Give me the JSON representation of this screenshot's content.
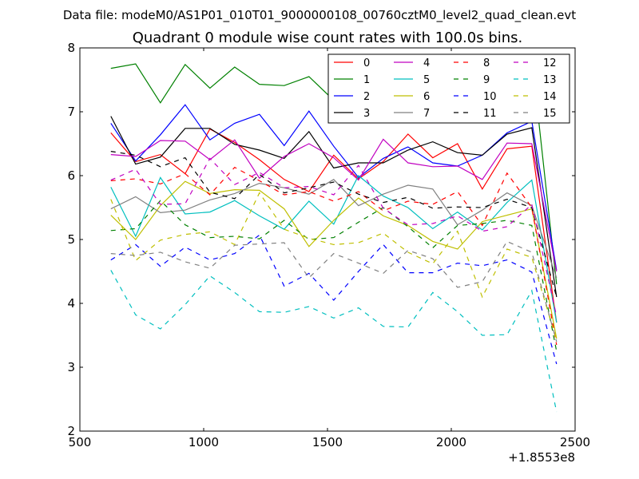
{
  "suptitle": "Data file: modeM0/AS1P01_010T01_9000000108_00760cztM0_level2_quad_clean.evt",
  "chart_data": {
    "type": "line",
    "title": "Quadrant 0 module wise count rates with 100.0s bins.",
    "xlabel": "",
    "ylabel": "",
    "x_offset_label": "+1.8553e8",
    "xlim": [
      500,
      2500
    ],
    "ylim": [
      2,
      8
    ],
    "xticks": [
      500,
      1000,
      1500,
      2000,
      2500
    ],
    "yticks": [
      2,
      3,
      4,
      5,
      6,
      7,
      8
    ],
    "grid": false,
    "legend_position": "top-right",
    "x": [
      625,
      725,
      825,
      925,
      1025,
      1125,
      1225,
      1325,
      1425,
      1525,
      1625,
      1725,
      1825,
      1925,
      2025,
      2125,
      2225,
      2325,
      2425
    ],
    "series": [
      {
        "name": "0",
        "color": "#ff0000",
        "style": "solid",
        "values": [
          6.67,
          6.22,
          6.33,
          6.03,
          6.73,
          6.52,
          6.25,
          5.94,
          5.75,
          6.32,
          5.95,
          6.22,
          6.65,
          6.28,
          6.5,
          5.79,
          6.42,
          6.46,
          3.7
        ]
      },
      {
        "name": "1",
        "color": "#008000",
        "style": "solid",
        "values": [
          7.68,
          7.75,
          7.14,
          7.74,
          7.37,
          7.7,
          7.43,
          7.41,
          7.55,
          7.18,
          7.22,
          7.7,
          7.7,
          7.58,
          7.3,
          6.87,
          7.67,
          7.85,
          4.3
        ]
      },
      {
        "name": "2",
        "color": "#0000ff",
        "style": "solid",
        "values": [
          6.82,
          6.23,
          6.64,
          7.11,
          6.56,
          6.82,
          6.96,
          6.47,
          7.01,
          6.46,
          5.97,
          6.27,
          6.45,
          6.2,
          6.15,
          6.32,
          6.67,
          6.85,
          4.52
        ]
      },
      {
        "name": "3",
        "color": "#000000",
        "style": "solid",
        "values": [
          6.93,
          6.18,
          6.29,
          6.74,
          6.74,
          6.49,
          6.4,
          6.27,
          6.69,
          6.12,
          6.2,
          6.2,
          6.4,
          6.53,
          6.36,
          6.32,
          6.65,
          6.75,
          4.1
        ]
      },
      {
        "name": "4",
        "color": "#c000c0",
        "style": "solid",
        "values": [
          6.33,
          6.3,
          6.55,
          6.54,
          6.25,
          6.56,
          5.96,
          6.3,
          6.5,
          6.28,
          5.93,
          6.57,
          6.2,
          6.14,
          6.15,
          5.94,
          6.51,
          6.5,
          4.5
        ]
      },
      {
        "name": "5",
        "color": "#00bfbf",
        "style": "solid",
        "values": [
          5.82,
          5.05,
          5.97,
          5.4,
          5.43,
          5.61,
          5.37,
          5.16,
          5.6,
          5.24,
          6.0,
          5.68,
          5.5,
          5.17,
          5.43,
          5.15,
          5.58,
          5.93,
          3.7
        ]
      },
      {
        "name": "6",
        "color": "#bfbf00",
        "style": "solid",
        "values": [
          5.38,
          5.0,
          5.53,
          5.91,
          5.72,
          5.78,
          5.77,
          5.48,
          4.89,
          5.3,
          5.65,
          5.37,
          5.22,
          4.97,
          4.85,
          5.28,
          5.38,
          5.48,
          3.45
        ]
      },
      {
        "name": "7",
        "color": "#808080",
        "style": "solid",
        "values": [
          5.48,
          5.67,
          5.42,
          5.46,
          5.62,
          5.72,
          5.88,
          5.81,
          5.71,
          5.94,
          5.53,
          5.71,
          5.85,
          5.79,
          5.23,
          5.46,
          5.73,
          5.53,
          4.4
        ]
      },
      {
        "name": "8",
        "color": "#ff0000",
        "style": "dashed",
        "values": [
          5.92,
          5.95,
          5.87,
          6.03,
          5.7,
          6.13,
          5.92,
          5.7,
          5.75,
          5.6,
          5.75,
          5.45,
          5.6,
          5.55,
          5.75,
          5.22,
          6.04,
          5.5,
          3.35
        ]
      },
      {
        "name": "9",
        "color": "#008000",
        "style": "dashed",
        "values": [
          5.14,
          5.17,
          5.61,
          5.23,
          5.03,
          5.05,
          5.01,
          5.3,
          5.0,
          5.03,
          5.27,
          5.5,
          5.2,
          4.87,
          5.22,
          5.25,
          5.3,
          5.22,
          3.25
        ]
      },
      {
        "name": "10",
        "color": "#0000ff",
        "style": "dashed",
        "values": [
          4.68,
          4.92,
          4.58,
          4.88,
          4.68,
          4.78,
          5.07,
          4.27,
          4.47,
          4.05,
          4.5,
          4.92,
          4.48,
          4.48,
          4.63,
          4.59,
          4.68,
          4.49,
          3.05
        ]
      },
      {
        "name": "11",
        "color": "#000000",
        "style": "dashed",
        "values": [
          6.38,
          6.32,
          6.14,
          6.28,
          5.74,
          5.64,
          6.02,
          5.73,
          5.81,
          5.9,
          5.71,
          5.58,
          5.66,
          5.49,
          5.51,
          5.5,
          5.63,
          5.5,
          4.1
        ]
      },
      {
        "name": "12",
        "color": "#c000c0",
        "style": "dashed",
        "values": [
          5.93,
          6.1,
          5.55,
          5.56,
          6.27,
          5.86,
          6.05,
          5.81,
          5.83,
          5.7,
          6.16,
          5.49,
          5.23,
          5.25,
          5.37,
          5.13,
          5.2,
          5.55,
          3.8
        ]
      },
      {
        "name": "13",
        "color": "#00bfbf",
        "style": "dashed",
        "values": [
          4.52,
          3.82,
          3.6,
          3.98,
          4.43,
          4.17,
          3.87,
          3.86,
          3.95,
          3.77,
          3.93,
          3.64,
          3.63,
          4.17,
          3.87,
          3.5,
          3.51,
          4.2,
          2.3
        ]
      },
      {
        "name": "14",
        "color": "#bfbf00",
        "style": "dashed",
        "values": [
          5.63,
          4.67,
          4.99,
          5.08,
          5.12,
          4.92,
          5.73,
          5.16,
          5.02,
          4.92,
          4.95,
          5.1,
          4.8,
          4.62,
          5.13,
          4.1,
          4.85,
          4.72,
          3.42
        ]
      },
      {
        "name": "15",
        "color": "#808080",
        "style": "dashed",
        "values": [
          4.78,
          4.75,
          4.8,
          4.65,
          4.55,
          4.91,
          4.93,
          4.95,
          4.4,
          4.78,
          4.63,
          4.47,
          4.83,
          4.7,
          4.25,
          4.34,
          4.97,
          4.8,
          3.4
        ]
      }
    ]
  }
}
